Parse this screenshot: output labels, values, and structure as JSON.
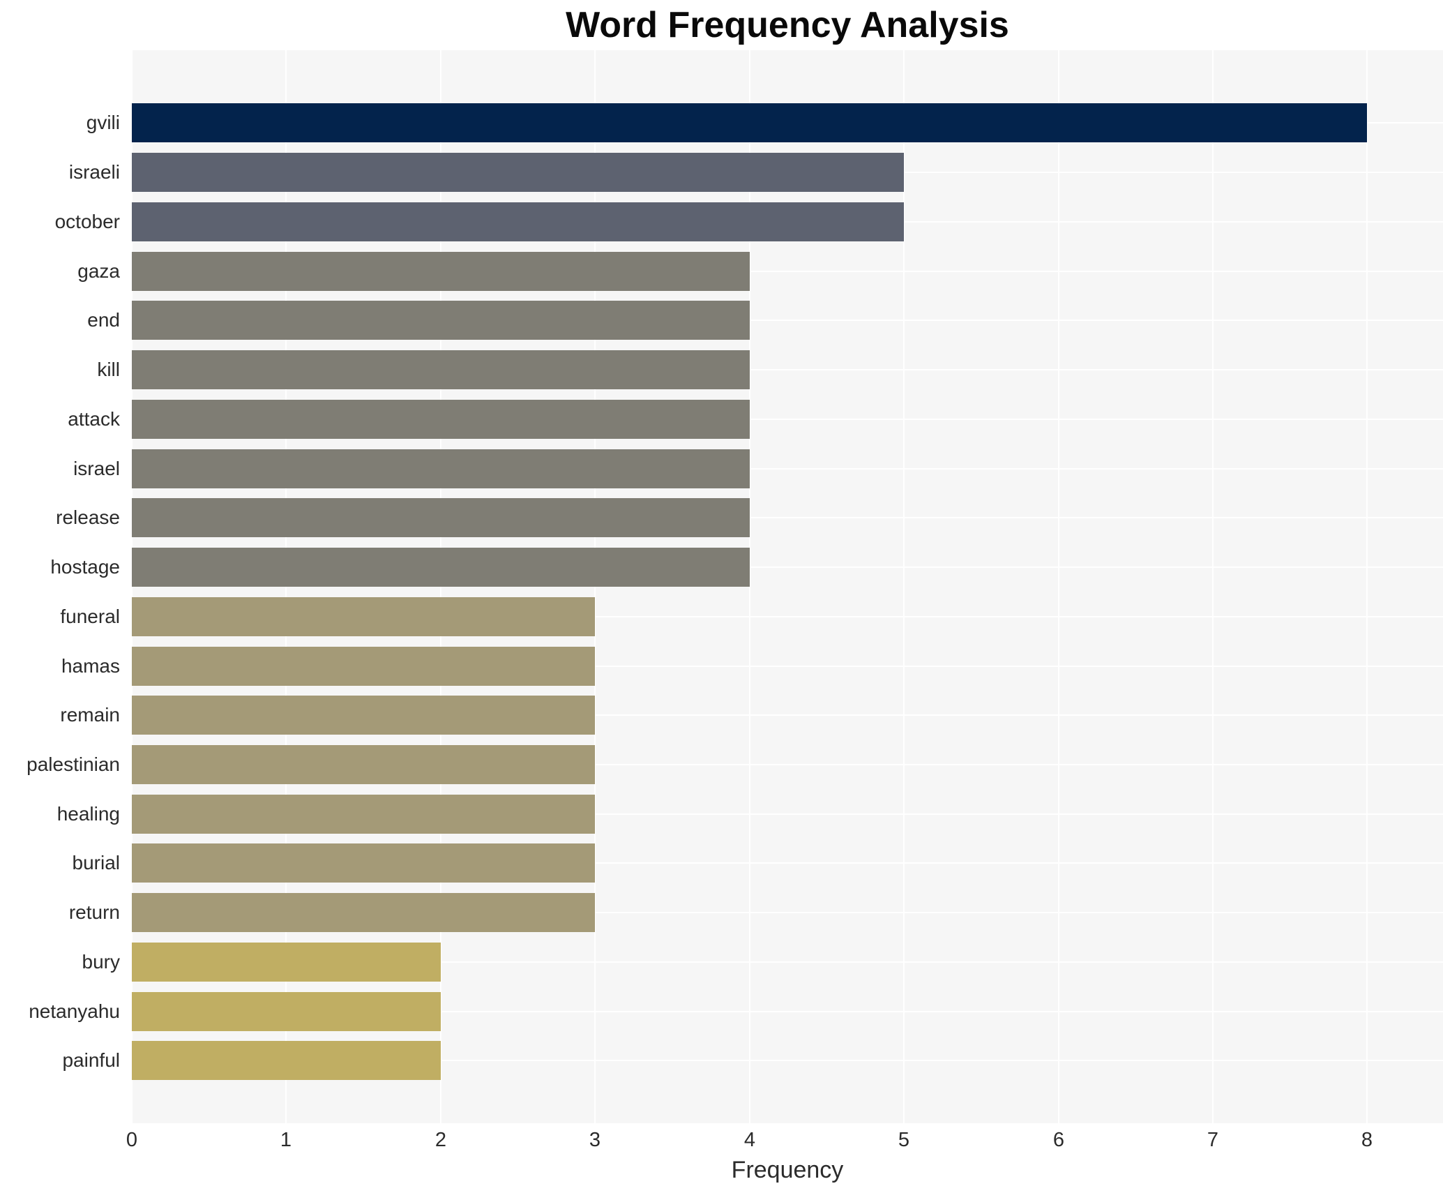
{
  "chart_data": {
    "type": "bar",
    "orientation": "horizontal",
    "title": "Word Frequency Analysis",
    "xlabel": "Frequency",
    "ylabel": "",
    "categories": [
      "gvili",
      "israeli",
      "october",
      "gaza",
      "end",
      "kill",
      "attack",
      "israel",
      "release",
      "hostage",
      "funeral",
      "hamas",
      "remain",
      "palestinian",
      "healing",
      "burial",
      "return",
      "bury",
      "netanyahu",
      "painful"
    ],
    "values": [
      8,
      5,
      5,
      4,
      4,
      4,
      4,
      4,
      4,
      4,
      3,
      3,
      3,
      3,
      3,
      3,
      3,
      2,
      2,
      2
    ],
    "xticks": [
      0,
      1,
      2,
      3,
      4,
      5,
      6,
      7,
      8
    ],
    "xlim": [
      0,
      8.49
    ],
    "grid": true,
    "legend": "none",
    "colors_by_value": {
      "8": "#03234c",
      "5": "#5d6270",
      "4": "#7f7d74",
      "3": "#a49a77",
      "2": "#c0ae63"
    },
    "plot_background": "#f6f6f6",
    "gridline_color": "#ffffff",
    "text_color": "#2b2b2b",
    "title_color": "#0a0a0a"
  }
}
